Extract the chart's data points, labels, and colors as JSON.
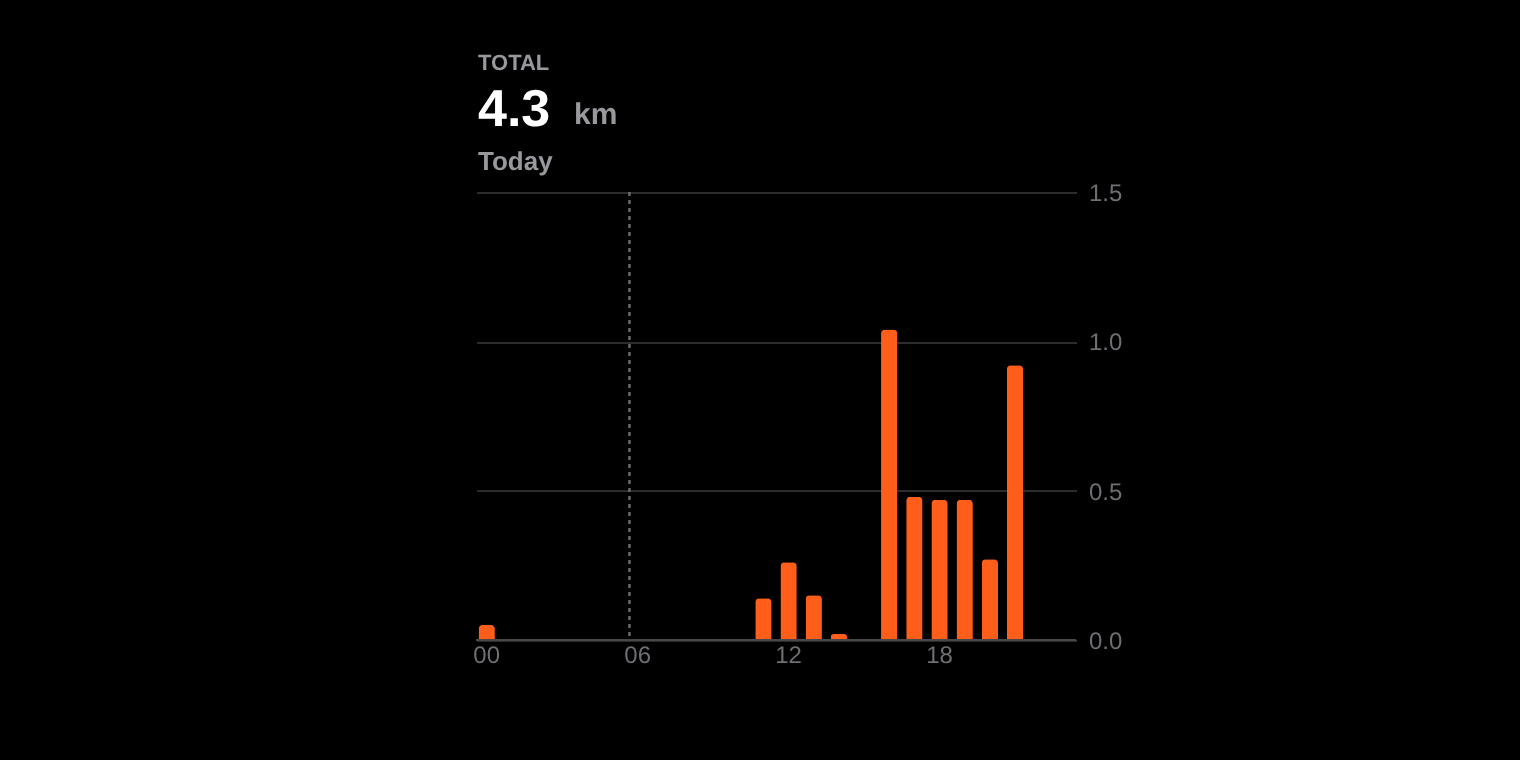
{
  "chart_data": {
    "type": "bar",
    "title": "TOTAL",
    "annotations": [
      "4.3",
      "km",
      "Today"
    ],
    "categories": [
      "00",
      null,
      null,
      null,
      null,
      null,
      "06",
      null,
      null,
      null,
      null,
      null,
      "12",
      null,
      null,
      null,
      null,
      null,
      "18",
      null,
      null,
      null,
      null,
      null
    ],
    "values": [
      0.05,
      0,
      0,
      0,
      0,
      0,
      0,
      0,
      0,
      0,
      0,
      0.14,
      0.26,
      0.15,
      0.02,
      0,
      1.04,
      0.48,
      0.47,
      0.47,
      0.27,
      0.92,
      0,
      0
    ],
    "color": "#ff5e1a",
    "ylim": [
      0,
      1.5
    ],
    "yticks": [
      {
        "value": 0,
        "label": "0.0"
      },
      0.5,
      {
        "value": 1,
        "label": "1.0"
      },
      1.5
    ],
    "grid": "y",
    "ref_lines": [
      {
        "axis": "x",
        "value": "06",
        "line_style": "dotted",
        "color": "#6e6e6e"
      }
    ]
  }
}
